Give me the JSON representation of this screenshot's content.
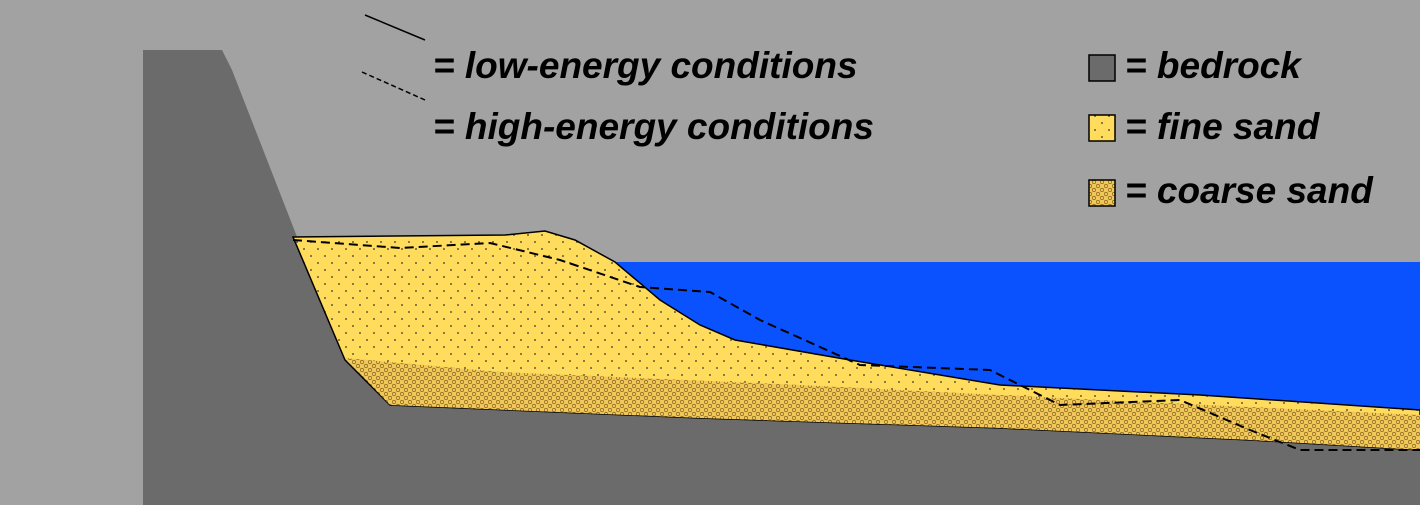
{
  "legend": {
    "lines": [
      {
        "label": "= low-energy conditions"
      },
      {
        "label": "= high-energy conditions"
      }
    ],
    "materials": [
      {
        "label": "= bedrock"
      },
      {
        "label": "= fine sand"
      },
      {
        "label": "= coarse sand"
      }
    ]
  }
}
